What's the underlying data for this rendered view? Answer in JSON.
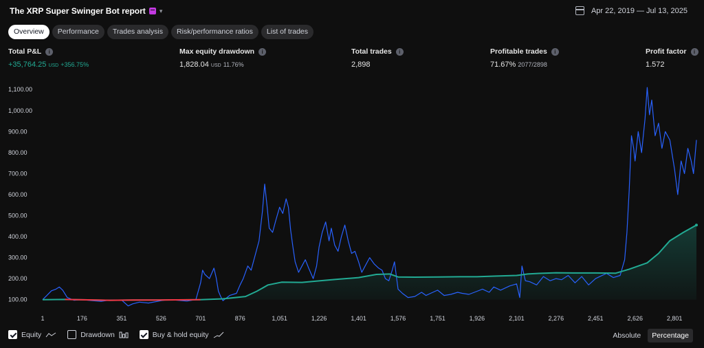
{
  "header": {
    "title": "The XRP Super Swinger Bot report",
    "date_range": "Apr 22, 2019 — Jul 13, 2025"
  },
  "tabs": [
    {
      "label": "Overview",
      "active": true
    },
    {
      "label": "Performance"
    },
    {
      "label": "Trades analysis"
    },
    {
      "label": "Risk/performance ratios"
    },
    {
      "label": "List of trades"
    }
  ],
  "stats": {
    "total_pl": {
      "label": "Total P&L",
      "value": "+35,764.25",
      "unit": "USD",
      "pct": "+356.75%"
    },
    "max_dd": {
      "label": "Max equity drawdown",
      "value": "1,828.04",
      "unit": "USD",
      "pct": "11.76%"
    },
    "total_trades": {
      "label": "Total trades",
      "value": "2,898"
    },
    "profitable": {
      "label": "Profitable trades",
      "value": "71.67%",
      "sub": "2077/2898"
    },
    "profit_factor": {
      "label": "Profit factor",
      "value": "1.572"
    }
  },
  "chart_data": {
    "type": "area",
    "y_ticks": [
      "1,100.00",
      "1,000.00",
      "900.00",
      "800.00",
      "700.00",
      "600.00",
      "500.00",
      "400.00",
      "300.00",
      "200.00",
      "100.00"
    ],
    "x_ticks": [
      "1",
      "176",
      "351",
      "526",
      "701",
      "876",
      "1,051",
      "1,226",
      "1,401",
      "1,576",
      "1,751",
      "1,926",
      "2,101",
      "2,276",
      "2,451",
      "2,626",
      "2,801"
    ],
    "xlim": [
      1,
      2898
    ],
    "ylim": [
      40,
      1140
    ],
    "series": [
      {
        "name": "Equity",
        "color": "#22ab94",
        "points": [
          [
            1,
            100
          ],
          [
            100,
            101
          ],
          [
            200,
            99
          ],
          [
            300,
            97
          ],
          [
            400,
            98
          ],
          [
            500,
            98
          ],
          [
            600,
            99
          ],
          [
            700,
            100
          ],
          [
            800,
            104
          ],
          [
            900,
            115
          ],
          [
            950,
            140
          ],
          [
            1000,
            170
          ],
          [
            1060,
            183
          ],
          [
            1150,
            182
          ],
          [
            1230,
            190
          ],
          [
            1300,
            196
          ],
          [
            1401,
            205
          ],
          [
            1480,
            220
          ],
          [
            1540,
            222
          ],
          [
            1576,
            208
          ],
          [
            1650,
            207
          ],
          [
            1751,
            208
          ],
          [
            1850,
            209
          ],
          [
            1926,
            209
          ],
          [
            2000,
            212
          ],
          [
            2101,
            215
          ],
          [
            2150,
            222
          ],
          [
            2200,
            225
          ],
          [
            2276,
            228
          ],
          [
            2350,
            227
          ],
          [
            2451,
            227
          ],
          [
            2540,
            226
          ],
          [
            2600,
            245
          ],
          [
            2680,
            275
          ],
          [
            2730,
            320
          ],
          [
            2780,
            380
          ],
          [
            2840,
            420
          ],
          [
            2898,
            455
          ]
        ]
      },
      {
        "name": "Buy & hold equity",
        "color": "#2962ff",
        "points": [
          [
            1,
            100
          ],
          [
            20,
            120
          ],
          [
            40,
            142
          ],
          [
            60,
            150
          ],
          [
            75,
            160
          ],
          [
            90,
            145
          ],
          [
            110,
            110
          ],
          [
            140,
            97
          ],
          [
            176,
            100
          ],
          [
            220,
            95
          ],
          [
            260,
            92
          ],
          [
            300,
            98
          ],
          [
            351,
            98
          ],
          [
            380,
            70
          ],
          [
            400,
            80
          ],
          [
            430,
            88
          ],
          [
            470,
            84
          ],
          [
            526,
            95
          ],
          [
            560,
            100
          ],
          [
            600,
            97
          ],
          [
            640,
            93
          ],
          [
            680,
            100
          ],
          [
            701,
            180
          ],
          [
            710,
            240
          ],
          [
            720,
            220
          ],
          [
            740,
            200
          ],
          [
            760,
            250
          ],
          [
            770,
            205
          ],
          [
            780,
            140
          ],
          [
            790,
            115
          ],
          [
            800,
            95
          ],
          [
            830,
            120
          ],
          [
            860,
            130
          ],
          [
            876,
            170
          ],
          [
            890,
            200
          ],
          [
            910,
            260
          ],
          [
            925,
            240
          ],
          [
            940,
            300
          ],
          [
            960,
            380
          ],
          [
            975,
            520
          ],
          [
            985,
            650
          ],
          [
            995,
            550
          ],
          [
            1005,
            440
          ],
          [
            1020,
            420
          ],
          [
            1035,
            480
          ],
          [
            1051,
            540
          ],
          [
            1065,
            510
          ],
          [
            1080,
            580
          ],
          [
            1090,
            540
          ],
          [
            1100,
            430
          ],
          [
            1110,
            350
          ],
          [
            1120,
            280
          ],
          [
            1135,
            230
          ],
          [
            1150,
            260
          ],
          [
            1165,
            290
          ],
          [
            1180,
            250
          ],
          [
            1200,
            200
          ],
          [
            1215,
            260
          ],
          [
            1226,
            350
          ],
          [
            1240,
            420
          ],
          [
            1255,
            470
          ],
          [
            1270,
            380
          ],
          [
            1280,
            440
          ],
          [
            1295,
            360
          ],
          [
            1310,
            330
          ],
          [
            1325,
            400
          ],
          [
            1340,
            455
          ],
          [
            1355,
            380
          ],
          [
            1370,
            320
          ],
          [
            1385,
            330
          ],
          [
            1401,
            280
          ],
          [
            1415,
            230
          ],
          [
            1430,
            260
          ],
          [
            1450,
            300
          ],
          [
            1470,
            270
          ],
          [
            1490,
            250
          ],
          [
            1505,
            240
          ],
          [
            1520,
            200
          ],
          [
            1535,
            190
          ],
          [
            1550,
            240
          ],
          [
            1560,
            280
          ],
          [
            1576,
            150
          ],
          [
            1595,
            130
          ],
          [
            1620,
            110
          ],
          [
            1650,
            115
          ],
          [
            1680,
            135
          ],
          [
            1700,
            120
          ],
          [
            1720,
            130
          ],
          [
            1751,
            145
          ],
          [
            1780,
            120
          ],
          [
            1810,
            125
          ],
          [
            1840,
            135
          ],
          [
            1860,
            130
          ],
          [
            1890,
            125
          ],
          [
            1926,
            140
          ],
          [
            1950,
            150
          ],
          [
            1980,
            135
          ],
          [
            2000,
            160
          ],
          [
            2030,
            145
          ],
          [
            2070,
            165
          ],
          [
            2101,
            175
          ],
          [
            2115,
            110
          ],
          [
            2125,
            260
          ],
          [
            2140,
            190
          ],
          [
            2160,
            185
          ],
          [
            2190,
            170
          ],
          [
            2220,
            210
          ],
          [
            2250,
            190
          ],
          [
            2276,
            200
          ],
          [
            2300,
            195
          ],
          [
            2330,
            215
          ],
          [
            2360,
            180
          ],
          [
            2390,
            210
          ],
          [
            2420,
            170
          ],
          [
            2451,
            200
          ],
          [
            2470,
            210
          ],
          [
            2500,
            225
          ],
          [
            2530,
            205
          ],
          [
            2560,
            215
          ],
          [
            2580,
            290
          ],
          [
            2590,
            420
          ],
          [
            2600,
            620
          ],
          [
            2610,
            880
          ],
          [
            2620,
            820
          ],
          [
            2626,
            760
          ],
          [
            2640,
            900
          ],
          [
            2655,
            800
          ],
          [
            2670,
            960
          ],
          [
            2680,
            1110
          ],
          [
            2690,
            980
          ],
          [
            2700,
            1050
          ],
          [
            2715,
            880
          ],
          [
            2730,
            940
          ],
          [
            2745,
            820
          ],
          [
            2760,
            900
          ],
          [
            2780,
            860
          ],
          [
            2801,
            720
          ],
          [
            2815,
            600
          ],
          [
            2830,
            760
          ],
          [
            2845,
            700
          ],
          [
            2860,
            820
          ],
          [
            2875,
            760
          ],
          [
            2885,
            700
          ],
          [
            2898,
            860
          ]
        ]
      }
    ],
    "underwater_segment": {
      "from": 100,
      "to": 700,
      "color": "#f23645"
    }
  },
  "legend": {
    "equity": {
      "label": "Equity",
      "checked": true
    },
    "drawdown": {
      "label": "Drawdown",
      "checked": false
    },
    "buyhold": {
      "label": "Buy & hold equity",
      "checked": true
    }
  },
  "mode": {
    "absolute": "Absolute",
    "percentage": "Percentage",
    "active": "percentage"
  },
  "colors": {
    "equity": "#22ab94",
    "buyhold": "#2962ff",
    "loss": "#f23645",
    "background": "#0f0f0f"
  }
}
